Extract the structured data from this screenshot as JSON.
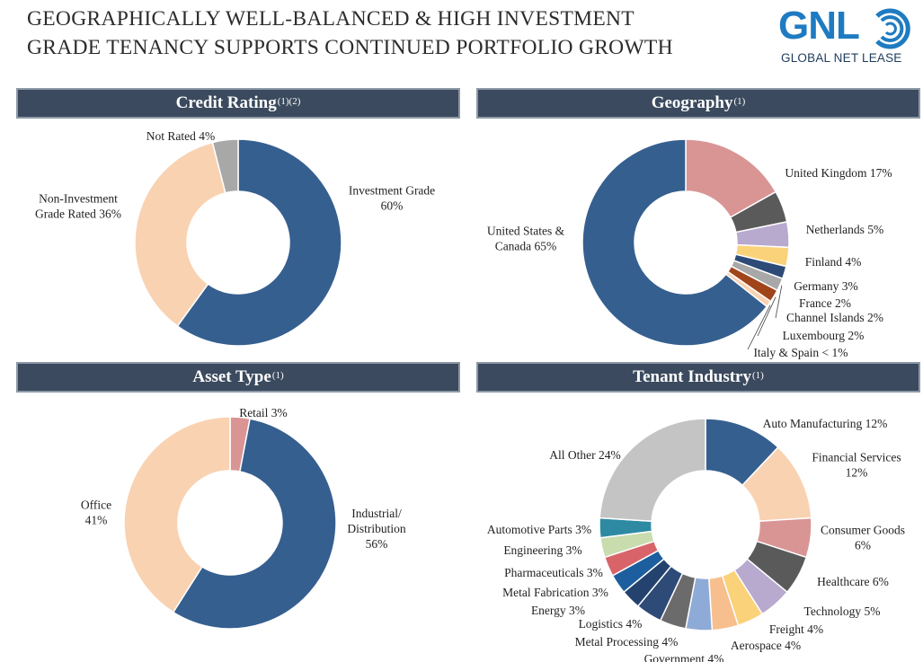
{
  "header": {
    "title_line1": "GEOGRAPHICALLY WELL-BALANCED & HIGH INVESTMENT",
    "title_line2": "GRADE TENANCY SUPPORTS CONTINUED PORTFOLIO GROWTH"
  },
  "logo": {
    "mark": "GNL",
    "name": "GLOBAL NET LEASE"
  },
  "panels": {
    "credit": {
      "title": "Credit Rating",
      "note": "(1)(2)"
    },
    "geo": {
      "title": "Geography",
      "note": "(1)"
    },
    "asset": {
      "title": "Asset Type",
      "note": "(1)"
    },
    "tenant": {
      "title": "Tenant Industry",
      "note": "(1)"
    }
  },
  "colors": {
    "header_bg": "#3b4a5e",
    "navy": "#355f8f",
    "peach": "#f9d2b2",
    "gray": "#a8a8a8",
    "rose": "#d99594"
  },
  "chart_data": [
    {
      "type": "pie",
      "title": "Credit Rating",
      "slices": [
        {
          "label": "Investment Grade",
          "value": 60,
          "text": [
            "Investment Grade",
            "60%"
          ],
          "color": "#355f8f"
        },
        {
          "label": "Non-Investment Grade Rated",
          "value": 36,
          "text": [
            "Non-Investment",
            "Grade Rated 36%"
          ],
          "color": "#f9d2b2"
        },
        {
          "label": "Not Rated",
          "value": 4,
          "text": [
            "Not Rated 4%"
          ],
          "color": "#a8a8a8"
        }
      ]
    },
    {
      "type": "pie",
      "title": "Geography",
      "slices": [
        {
          "label": "United Kingdom",
          "value": 17,
          "text": [
            "United Kingdom 17%"
          ],
          "color": "#d99594"
        },
        {
          "label": "Netherlands",
          "value": 5,
          "text": [
            "Netherlands 5%"
          ],
          "color": "#5a5a5a"
        },
        {
          "label": "Finland",
          "value": 4,
          "text": [
            "Finland 4%"
          ],
          "color": "#b8a9cf"
        },
        {
          "label": "Germany",
          "value": 3,
          "text": [
            "Germany 3%"
          ],
          "color": "#fad27a"
        },
        {
          "label": "France",
          "value": 2,
          "text": [
            "France 2%"
          ],
          "color": "#2e4b78"
        },
        {
          "label": "Channel Islands",
          "value": 2,
          "text": [
            "Channel Islands 2%"
          ],
          "color": "#a8a8a8"
        },
        {
          "label": "Luxembourg",
          "value": 2,
          "text": [
            "Luxembourg 2%"
          ],
          "color": "#a0441a"
        },
        {
          "label": "Italy & Spain",
          "value": 1,
          "text": [
            "Italy & Spain < 1%"
          ],
          "color": "#f9d2b2"
        },
        {
          "label": "United States & Canada",
          "value": 65,
          "text": [
            "United States &",
            "Canada 65%"
          ],
          "color": "#355f8f"
        }
      ]
    },
    {
      "type": "pie",
      "title": "Asset Type",
      "slices": [
        {
          "label": "Retail",
          "value": 3,
          "text": [
            "Retail 3%"
          ],
          "color": "#d99594"
        },
        {
          "label": "Industrial/Distribution",
          "value": 56,
          "text": [
            "Industrial/",
            "Distribution",
            "56%"
          ],
          "color": "#355f8f"
        },
        {
          "label": "Office",
          "value": 41,
          "text": [
            "Office",
            "41%"
          ],
          "color": "#f9d2b2"
        }
      ]
    },
    {
      "type": "pie",
      "title": "Tenant Industry",
      "slices": [
        {
          "label": "Auto Manufacturing",
          "value": 12,
          "text": [
            "Auto Manufacturing 12%"
          ],
          "color": "#355f8f"
        },
        {
          "label": "Financial Services",
          "value": 12,
          "text": [
            "Financial Services",
            "12%"
          ],
          "color": "#f9d2b2"
        },
        {
          "label": "Consumer Goods",
          "value": 6,
          "text": [
            "Consumer Goods",
            "6%"
          ],
          "color": "#d99594"
        },
        {
          "label": "Healthcare",
          "value": 6,
          "text": [
            "Healthcare 6%"
          ],
          "color": "#5a5a5a"
        },
        {
          "label": "Technology",
          "value": 5,
          "text": [
            "Technology 5%"
          ],
          "color": "#b8a9cf"
        },
        {
          "label": "Freight",
          "value": 4,
          "text": [
            "Freight 4%"
          ],
          "color": "#fad27a"
        },
        {
          "label": "Aerospace",
          "value": 4,
          "text": [
            "Aerospace 4%"
          ],
          "color": "#f7bf8e"
        },
        {
          "label": "Government",
          "value": 4,
          "text": [
            "Government 4%"
          ],
          "color": "#8eaad6"
        },
        {
          "label": "Metal Processing",
          "value": 4,
          "text": [
            "Metal Processing 4%"
          ],
          "color": "#6b6b6b"
        },
        {
          "label": "Logistics",
          "value": 4,
          "text": [
            "Logistics 4%"
          ],
          "color": "#2e4b78"
        },
        {
          "label": "Energy",
          "value": 3,
          "text": [
            "Energy 3%"
          ],
          "color": "#23426e"
        },
        {
          "label": "Metal Fabrication",
          "value": 3,
          "text": [
            "Metal Fabrication 3%"
          ],
          "color": "#1d5f9e"
        },
        {
          "label": "Pharmaceuticals",
          "value": 3,
          "text": [
            "Pharmaceuticals 3%"
          ],
          "color": "#d8646a"
        },
        {
          "label": "Engineering",
          "value": 3,
          "text": [
            "Engineering 3%"
          ],
          "color": "#c9dcae"
        },
        {
          "label": "Automotive Parts",
          "value": 3,
          "text": [
            "Automotive Parts 3%"
          ],
          "color": "#2e8aa3"
        },
        {
          "label": "All Other",
          "value": 24,
          "text": [
            "All Other 24%"
          ],
          "color": "#c4c4c4"
        }
      ]
    }
  ]
}
